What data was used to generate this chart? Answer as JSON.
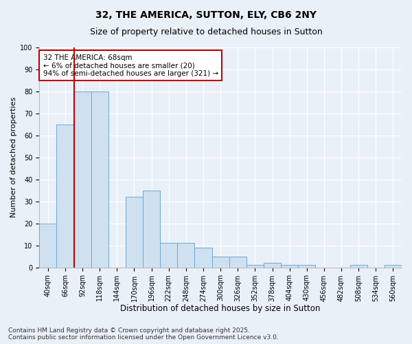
{
  "title": "32, THE AMERICA, SUTTON, ELY, CB6 2NY",
  "subtitle": "Size of property relative to detached houses in Sutton",
  "xlabel": "Distribution of detached houses by size in Sutton",
  "ylabel": "Number of detached properties",
  "categories": [
    "40sqm",
    "66sqm",
    "92sqm",
    "118sqm",
    "144sqm",
    "170sqm",
    "196sqm",
    "222sqm",
    "248sqm",
    "274sqm",
    "300sqm",
    "326sqm",
    "352sqm",
    "378sqm",
    "404sqm",
    "430sqm",
    "456sqm",
    "482sqm",
    "508sqm",
    "534sqm",
    "560sqm"
  ],
  "values": [
    20,
    65,
    80,
    80,
    0,
    32,
    35,
    11,
    11,
    9,
    5,
    5,
    1,
    2,
    1,
    1,
    0,
    0,
    1,
    0,
    1
  ],
  "bar_color": "#cfe0f0",
  "bar_edge_color": "#6aaad4",
  "vline_x_index": 1.5,
  "vline_color": "#c00000",
  "annotation_text": "32 THE AMERICA: 68sqm\n← 6% of detached houses are smaller (20)\n94% of semi-detached houses are larger (321) →",
  "annotation_box_color": "#ffffff",
  "annotation_box_edge": "#c00000",
  "ylim": [
    0,
    100
  ],
  "yticks": [
    0,
    10,
    20,
    30,
    40,
    50,
    60,
    70,
    80,
    90,
    100
  ],
  "bg_color": "#eaf0f8",
  "grid_color": "#ffffff",
  "footer": "Contains HM Land Registry data © Crown copyright and database right 2025.\nContains public sector information licensed under the Open Government Licence v3.0.",
  "title_fontsize": 10,
  "subtitle_fontsize": 9,
  "xlabel_fontsize": 8.5,
  "ylabel_fontsize": 8,
  "tick_fontsize": 7,
  "annotation_fontsize": 7.5,
  "footer_fontsize": 6.5
}
